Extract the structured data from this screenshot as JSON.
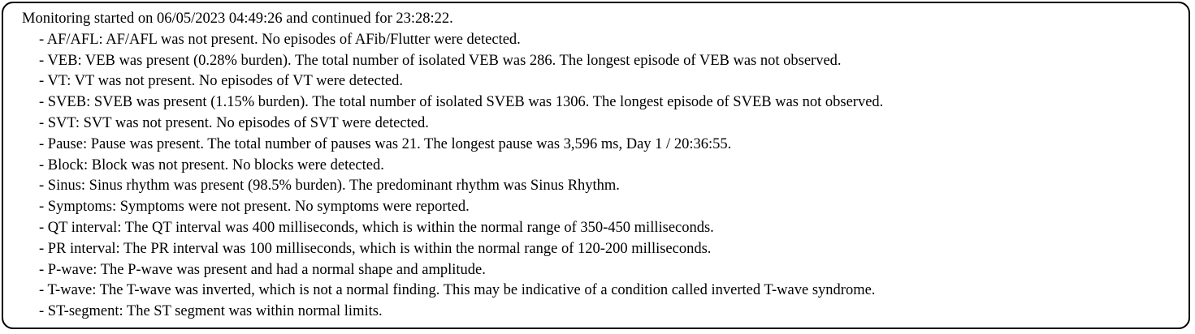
{
  "report": {
    "summary": "Monitoring started on 06/05/2023 04:49:26 and continued for 23:28:22.",
    "findings": [
      "- AF/AFL: AF/AFL was not present. No episodes of AFib/Flutter were detected.",
      "- VEB: VEB was present (0.28% burden). The total number of isolated VEB was 286. The longest episode of VEB was not observed.",
      "- VT: VT was not present. No episodes of VT were detected.",
      "- SVEB: SVEB was present (1.15% burden). The total number of isolated SVEB was 1306. The longest episode of SVEB was not observed.",
      "- SVT: SVT was not present. No episodes of SVT were detected.",
      "- Pause: Pause was present. The total number of pauses was 21. The longest pause was 3,596 ms, Day 1 / 20:36:55.",
      "- Block: Block was not present. No blocks were detected.",
      "- Sinus: Sinus rhythm was present (98.5% burden). The predominant rhythm was Sinus Rhythm.",
      "- Symptoms: Symptoms were not present. No symptoms were reported.",
      "- QT interval: The QT interval was 400 milliseconds, which is within the normal range of 350-450 milliseconds.",
      "- PR interval: The PR interval was 100 milliseconds, which is within the normal range of 120-200 milliseconds.",
      "- P-wave: The P-wave was present and had a normal shape and amplitude.",
      "- T-wave: The T-wave was inverted, which is not a normal finding. This may be indicative of a condition called inverted T-wave syndrome.",
      "- ST-segment: The ST segment was within normal limits."
    ]
  }
}
